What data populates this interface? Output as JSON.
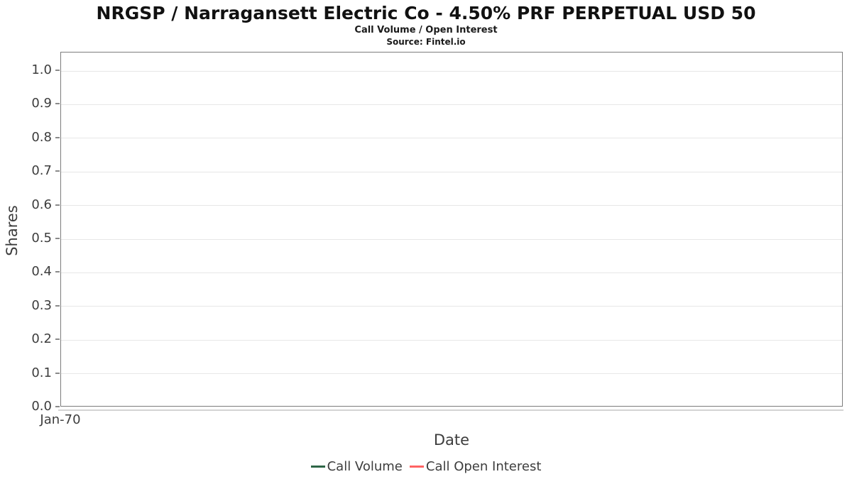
{
  "header": {
    "title": "NRGSP / Narragansett Electric Co - 4.50% PRF PERPETUAL USD 50",
    "subtitle": "Call Volume / Open Interest",
    "source": "Source: Fintel.io"
  },
  "chart_data": {
    "type": "line",
    "title": "NRGSP / Narragansett Electric Co - 4.50% PRF PERPETUAL USD 50",
    "subtitle": "Call Volume / Open Interest",
    "source": "Source: Fintel.io",
    "xlabel": "Date",
    "ylabel": "Shares",
    "ylim": [
      0.0,
      1.055
    ],
    "grid": true,
    "legend_position": "bottom-center",
    "yticks": [
      {
        "value": 0.0,
        "label": "0.0"
      },
      {
        "value": 0.1,
        "label": "0.1"
      },
      {
        "value": 0.2,
        "label": "0.2"
      },
      {
        "value": 0.3,
        "label": "0.3"
      },
      {
        "value": 0.4,
        "label": "0.4"
      },
      {
        "value": 0.5,
        "label": "0.5"
      },
      {
        "value": 0.6,
        "label": "0.6"
      },
      {
        "value": 0.7,
        "label": "0.7"
      },
      {
        "value": 0.8,
        "label": "0.8"
      },
      {
        "value": 0.9,
        "label": "0.9"
      },
      {
        "value": 1.0,
        "label": "1.0"
      }
    ],
    "xticks": [
      {
        "position": 0.0,
        "label": "Jan-70"
      }
    ],
    "series": [
      {
        "name": "Call Volume",
        "color": "#2e6647",
        "x": [],
        "values": []
      },
      {
        "name": "Call Open Interest",
        "color": "#ff6363",
        "x": [],
        "values": []
      }
    ],
    "colors": {
      "plot_border": "#7c7c7c",
      "gridline": "#e7e7e7",
      "axis_line": "#d4d4d4",
      "text": "#3d3d3d"
    }
  }
}
